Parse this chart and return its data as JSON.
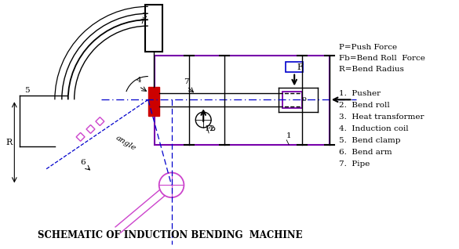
{
  "title": "SCHEMATIC OF INDUCTION BENDING  MACHINE",
  "title_fontsize": 8.5,
  "legend_lines": [
    "P=Push Force",
    "Fb=Bend Roll  Force",
    "R=Bend Radius"
  ],
  "numbered_items": [
    "1.  Pusher",
    "2.  Bend roll",
    "3.  Heat transformer",
    "4.  Induction coil",
    "5.  Bend clamp",
    "6.  Bend arm",
    "7.  Pipe"
  ],
  "colors": {
    "black": "#000000",
    "red": "#cc0000",
    "magenta": "#cc44cc",
    "blue": "#0000cc",
    "purple": "#7700aa",
    "dark_gray": "#444444"
  },
  "bg": "#ffffff"
}
